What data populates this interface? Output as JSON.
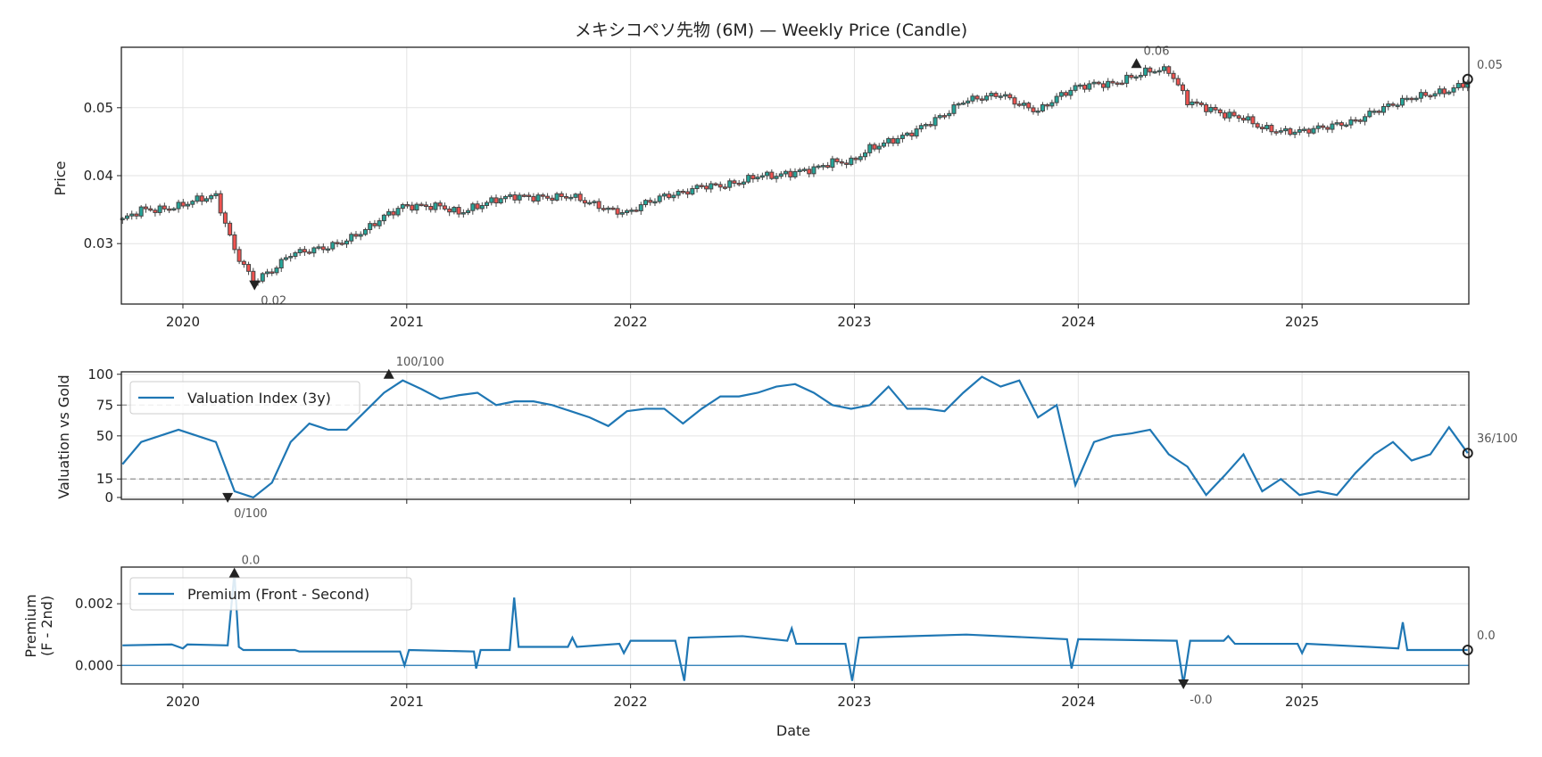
{
  "chart_data": {
    "title": "メキシコペソ先物 (6M) — Weekly Price (Candle)",
    "xlabel": "Date",
    "xlim": [
      2019.725,
      2025.745
    ],
    "x_ticks": [
      "2020",
      "2021",
      "2022",
      "2023",
      "2024",
      "2025"
    ],
    "colors": {
      "line": "#1f77b4",
      "up": "#26a69a",
      "down": "#ef5350",
      "edge": "#444444",
      "ref": "#999999"
    },
    "panels": [
      {
        "type": "candlestick",
        "ylabel": "Price",
        "ylim": [
          0.0211,
          0.0589
        ],
        "y_ticks": [
          "0.03",
          "0.04",
          "0.05"
        ],
        "y_tick_values": [
          0.03,
          0.04,
          0.05
        ],
        "x_start": 2019.73,
        "x_end": 2025.74,
        "monthly_close": [
          0.0335,
          0.035,
          0.035,
          0.0355,
          0.0365,
          0.037,
          0.029,
          0.0245,
          0.026,
          0.0285,
          0.029,
          0.0295,
          0.0305,
          0.032,
          0.034,
          0.0355,
          0.0355,
          0.0355,
          0.0345,
          0.0355,
          0.0365,
          0.037,
          0.0368,
          0.0368,
          0.037,
          0.036,
          0.035,
          0.0345,
          0.036,
          0.037,
          0.0375,
          0.0385,
          0.0385,
          0.039,
          0.04,
          0.04,
          0.0405,
          0.041,
          0.042,
          0.042,
          0.044,
          0.045,
          0.046,
          0.0475,
          0.049,
          0.051,
          0.0515,
          0.052,
          0.0505,
          0.0495,
          0.0515,
          0.053,
          0.0535,
          0.0535,
          0.0545,
          0.0555,
          0.0555,
          0.051,
          0.05,
          0.049,
          0.0485,
          0.047,
          0.0465,
          0.0465,
          0.047,
          0.0475,
          0.048,
          0.0495,
          0.0505,
          0.0515,
          0.052,
          0.0525,
          0.0538
        ],
        "annotations": [
          {
            "kind": "min",
            "x": 2020.32,
            "y": 0.0239,
            "label": "0.02"
          },
          {
            "kind": "max",
            "x": 2024.26,
            "y": 0.0565,
            "label": "0.06"
          },
          {
            "kind": "last",
            "x": 2025.74,
            "y": 0.0542,
            "label": "0.05"
          }
        ]
      },
      {
        "type": "line",
        "ylabel": "Valuation vs Gold",
        "legend": "Valuation Index (3y)",
        "ylim": [
          -1.5,
          102
        ],
        "y_ticks": [
          "0",
          "15",
          "50",
          "75",
          "100"
        ],
        "y_tick_values": [
          0,
          15,
          50,
          75,
          100
        ],
        "ref_lines": [
          75,
          15
        ],
        "x_start": 2019.73,
        "x_end": 2025.74,
        "values": [
          27,
          45,
          50,
          55,
          50,
          45,
          5,
          0,
          12,
          45,
          60,
          55,
          55,
          70,
          85,
          95,
          88,
          80,
          83,
          85,
          75,
          78,
          78,
          75,
          70,
          65,
          58,
          70,
          72,
          72,
          60,
          72,
          82,
          82,
          85,
          90,
          92,
          85,
          75,
          72,
          75,
          90,
          72,
          72,
          70,
          85,
          98,
          90,
          95,
          65,
          75,
          10,
          45,
          50,
          52,
          55,
          35,
          25,
          2,
          18,
          35,
          5,
          15,
          2,
          5,
          2,
          20,
          35,
          45,
          30,
          35,
          57,
          36
        ],
        "annotations": [
          {
            "kind": "min",
            "x": 2020.2,
            "y": 0,
            "label": "0/100"
          },
          {
            "kind": "max",
            "x": 2020.92,
            "y": 100,
            "label": "100/100"
          },
          {
            "kind": "last",
            "x": 2025.74,
            "y": 36,
            "label": "36/100"
          }
        ]
      },
      {
        "type": "line",
        "ylabel": "Premium",
        "ylabel2": "(F - 2nd)",
        "legend": "Premium (Front - Second)",
        "ylim": [
          -0.0006,
          0.00319
        ],
        "y_ticks": [
          "0.000",
          "0.002"
        ],
        "y_tick_values": [
          0,
          0.002
        ],
        "zero_line": 0,
        "points": [
          [
            2019.73,
            0.00065
          ],
          [
            2019.95,
            0.00068
          ],
          [
            2020.0,
            0.00055
          ],
          [
            2020.02,
            0.00068
          ],
          [
            2020.2,
            0.00065
          ],
          [
            2020.23,
            0.003
          ],
          [
            2020.25,
            0.0006
          ],
          [
            2020.27,
            0.0005
          ],
          [
            2020.5,
            0.0005
          ],
          [
            2020.52,
            0.00045
          ],
          [
            2020.97,
            0.00045
          ],
          [
            2020.99,
            0.0
          ],
          [
            2021.01,
            0.0005
          ],
          [
            2021.3,
            0.00045
          ],
          [
            2021.31,
            -0.0001
          ],
          [
            2021.33,
            0.0005
          ],
          [
            2021.46,
            0.0005
          ],
          [
            2021.48,
            0.0022
          ],
          [
            2021.5,
            0.0006
          ],
          [
            2021.72,
            0.0006
          ],
          [
            2021.74,
            0.0009
          ],
          [
            2021.76,
            0.0006
          ],
          [
            2021.95,
            0.0007
          ],
          [
            2021.97,
            0.0004
          ],
          [
            2022.0,
            0.0008
          ],
          [
            2022.2,
            0.0008
          ],
          [
            2022.24,
            -0.0005
          ],
          [
            2022.26,
            0.0009
          ],
          [
            2022.5,
            0.00095
          ],
          [
            2022.7,
            0.0008
          ],
          [
            2022.72,
            0.0012
          ],
          [
            2022.74,
            0.0007
          ],
          [
            2022.96,
            0.0007
          ],
          [
            2022.99,
            -0.0005
          ],
          [
            2023.02,
            0.0009
          ],
          [
            2023.5,
            0.001
          ],
          [
            2023.95,
            0.00085
          ],
          [
            2023.97,
            -0.0001
          ],
          [
            2024.0,
            0.00085
          ],
          [
            2024.44,
            0.0008
          ],
          [
            2024.47,
            -0.0006
          ],
          [
            2024.5,
            0.0008
          ],
          [
            2024.65,
            0.0008
          ],
          [
            2024.67,
            0.00095
          ],
          [
            2024.7,
            0.0007
          ],
          [
            2024.98,
            0.0007
          ],
          [
            2025.0,
            0.0004
          ],
          [
            2025.02,
            0.0007
          ],
          [
            2025.3,
            0.0006
          ],
          [
            2025.43,
            0.00055
          ],
          [
            2025.45,
            0.0014
          ],
          [
            2025.47,
            0.0005
          ],
          [
            2025.74,
            0.0005
          ]
        ],
        "annotations": [
          {
            "kind": "max",
            "x": 2020.23,
            "y": 0.003,
            "label": "0.0"
          },
          {
            "kind": "min",
            "x": 2024.47,
            "y": -0.0006,
            "label": "-0.0"
          },
          {
            "kind": "last",
            "x": 2025.74,
            "y": 0.0005,
            "label": "0.0"
          }
        ]
      }
    ]
  }
}
